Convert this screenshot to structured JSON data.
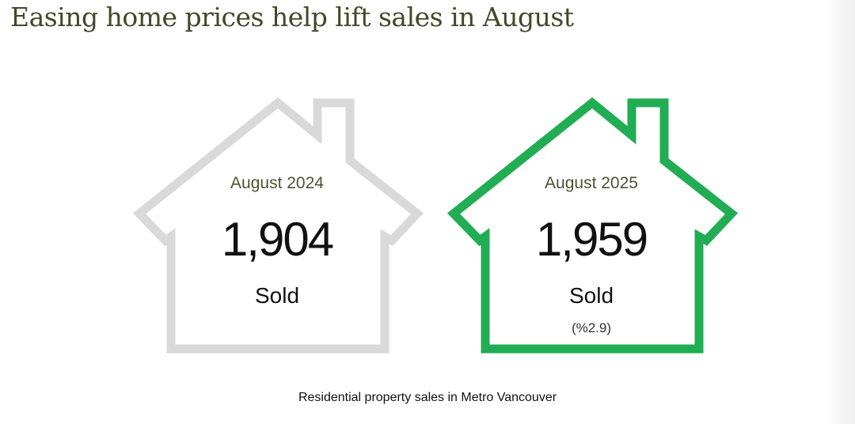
{
  "title": "Easing home prices help lift sales in August",
  "cards": [
    {
      "period": "August 2024",
      "count": "1,904",
      "label": "Sold",
      "outline_color": "#d9d9d9",
      "outline_icon": "house-outline-icon"
    },
    {
      "period": "August 2025",
      "count": "1,959",
      "label": "Sold",
      "change": "(%2.9)",
      "outline_color": "#21ad53",
      "outline_icon": "house-outline-icon"
    }
  ],
  "caption": "Residential property sales in Metro Vancouver"
}
